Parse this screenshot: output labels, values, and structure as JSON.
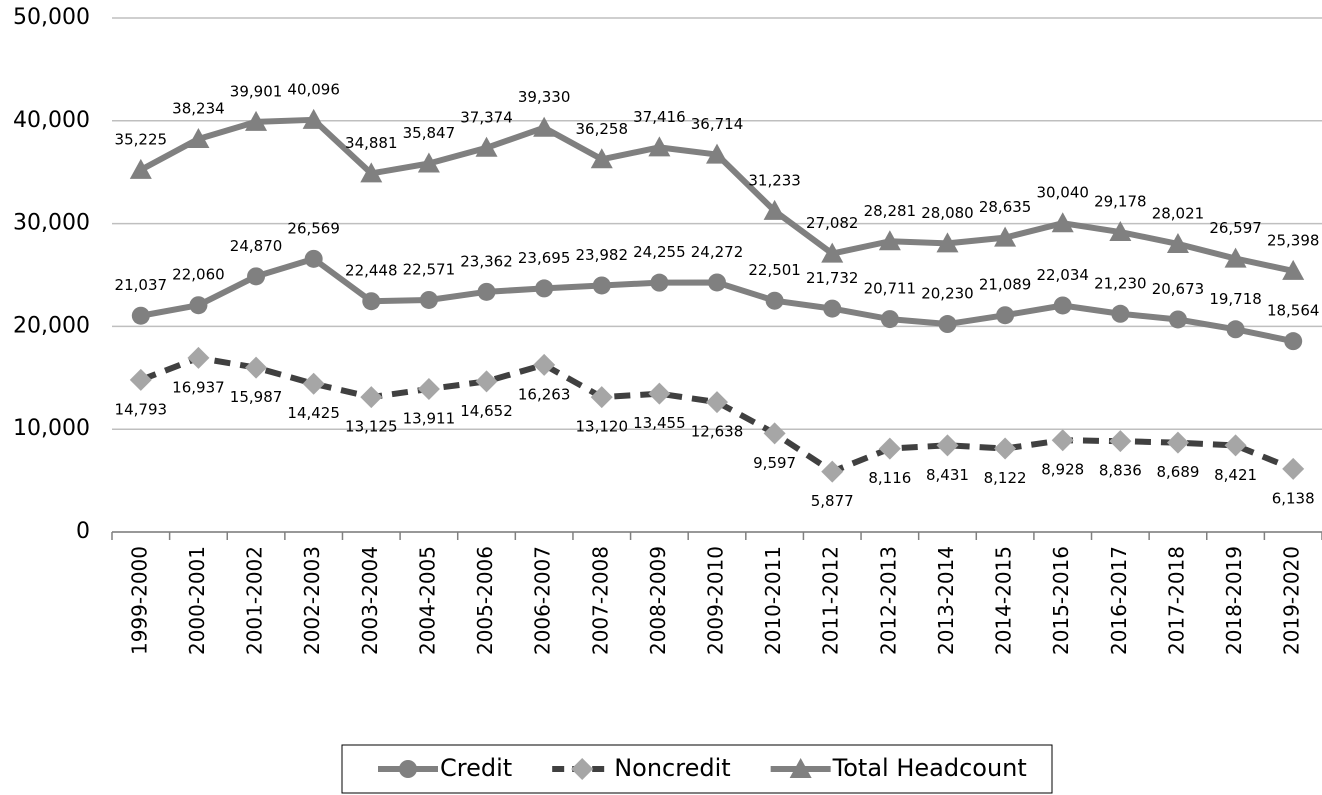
{
  "chart_data": {
    "type": "line",
    "categories": [
      "1999-2000",
      "2000-2001",
      "2001-2002",
      "2002-2003",
      "2003-2004",
      "2004-2005",
      "2005-2006",
      "2006-2007",
      "2007-2008",
      "2008-2009",
      "2009-2010",
      "2010-2011",
      "2011-2012",
      "2012-2013",
      "2013-2014",
      "2014-2015",
      "2015-2016",
      "2016-2017",
      "2017-2018",
      "2018-2019",
      "2019-2020"
    ],
    "series": [
      {
        "name": "Credit",
        "color": "#808080",
        "marker": "circle",
        "marker_color": "#808080",
        "dashed": false,
        "label_side": "above",
        "values": [
          21037,
          22060,
          24870,
          26569,
          22448,
          22571,
          23362,
          23695,
          23982,
          24255,
          24272,
          22501,
          21732,
          20711,
          20230,
          21089,
          22034,
          21230,
          20673,
          19718,
          18564
        ],
        "value_labels": [
          "21,037",
          "22,060",
          "24,870",
          "26,569",
          "22,448",
          "22,571",
          "23,362",
          "23,695",
          "23,982",
          "24,255",
          "24,272",
          "22,501",
          "21,732",
          "20,711",
          "20,230",
          "21,089",
          "22,034",
          "21,230",
          "20,673",
          "19,718",
          "18,564"
        ]
      },
      {
        "name": "Noncredit",
        "color": "#404040",
        "marker": "diamond",
        "marker_color": "#a6a6a6",
        "dashed": true,
        "label_side": "below",
        "values": [
          14793,
          16937,
          15987,
          14425,
          13125,
          13911,
          14652,
          16263,
          13120,
          13455,
          12638,
          9597,
          5877,
          8116,
          8431,
          8122,
          8928,
          8836,
          8689,
          8421,
          6138
        ],
        "value_labels": [
          "14,793",
          "16,937",
          "15,987",
          "14,425",
          "13,125",
          "13,911",
          "14,652",
          "16,263",
          "13,120",
          "13,455",
          "12,638",
          "9,597",
          "5,877",
          "8,116",
          "8,431",
          "8,122",
          "8,928",
          "8,836",
          "8,689",
          "8,421",
          "6,138"
        ]
      },
      {
        "name": "Total Headcount",
        "color": "#808080",
        "marker": "triangle",
        "marker_color": "#808080",
        "dashed": false,
        "label_side": "above",
        "values": [
          35225,
          38234,
          39901,
          40096,
          34881,
          35847,
          37374,
          39330,
          36258,
          37416,
          36714,
          31233,
          27082,
          28281,
          28080,
          28635,
          30040,
          29178,
          28021,
          26597,
          25398
        ],
        "value_labels": [
          "35,225",
          "38,234",
          "39,901",
          "40,096",
          "34,881",
          "35,847",
          "37,374",
          "39,330",
          "36,258",
          "37,416",
          "36,714",
          "31,233",
          "27,082",
          "28,281",
          "28,080",
          "28,635",
          "30,040",
          "29,178",
          "28,021",
          "26,597",
          "25,398"
        ]
      }
    ],
    "ylim": [
      0,
      50000
    ],
    "yticks": [
      0,
      {
        "value": 10000,
        "label": "10,000"
      },
      {
        "value": 20000,
        "label": "20,000"
      },
      {
        "value": 30000,
        "label": "30,000"
      },
      {
        "value": 40000,
        "label": "40,000"
      },
      {
        "value": 50000,
        "label": "50,000"
      }
    ],
    "grid": true,
    "legend": "bottom"
  }
}
